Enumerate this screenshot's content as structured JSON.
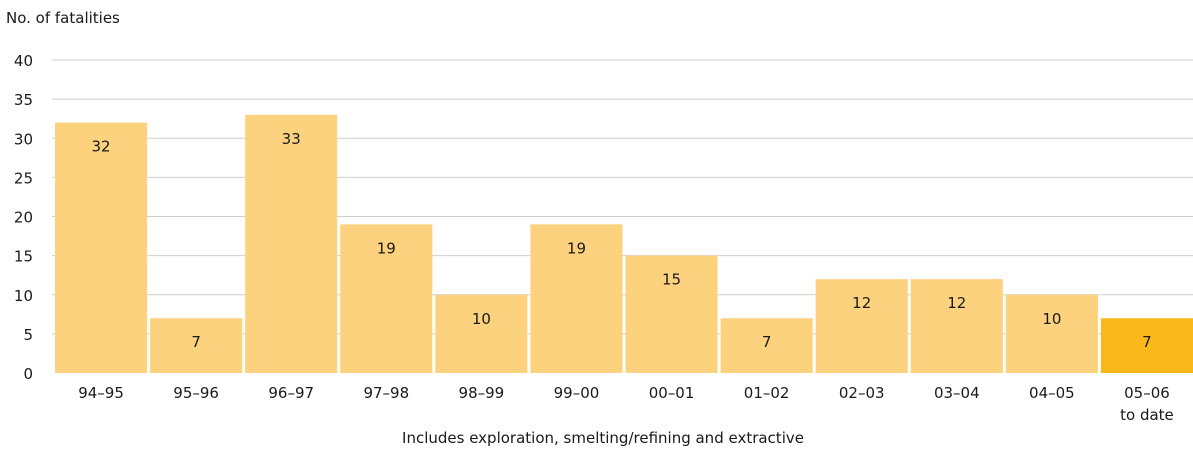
{
  "chart_data": {
    "type": "bar",
    "ylabel": "No. of fatalities",
    "xlabel": "Includes exploration, smelting/refining and extractive",
    "categories": [
      "94–95",
      "95–96",
      "96–97",
      "97–98",
      "98–99",
      "99–00",
      "00–01",
      "01–02",
      "02–03",
      "03–04",
      "04–05",
      "05–06\nto date"
    ],
    "values": [
      32,
      7,
      33,
      19,
      10,
      19,
      15,
      7,
      12,
      12,
      10,
      7
    ],
    "ylim": [
      0,
      40
    ],
    "yticks": [
      0,
      5,
      10,
      15,
      20,
      25,
      30,
      35,
      40
    ],
    "grid": true,
    "colors": {
      "bar": "#fdd27f",
      "highlight_bar": "#fbb81a",
      "grid": "#cfcfcf"
    },
    "highlight_index": 11
  }
}
